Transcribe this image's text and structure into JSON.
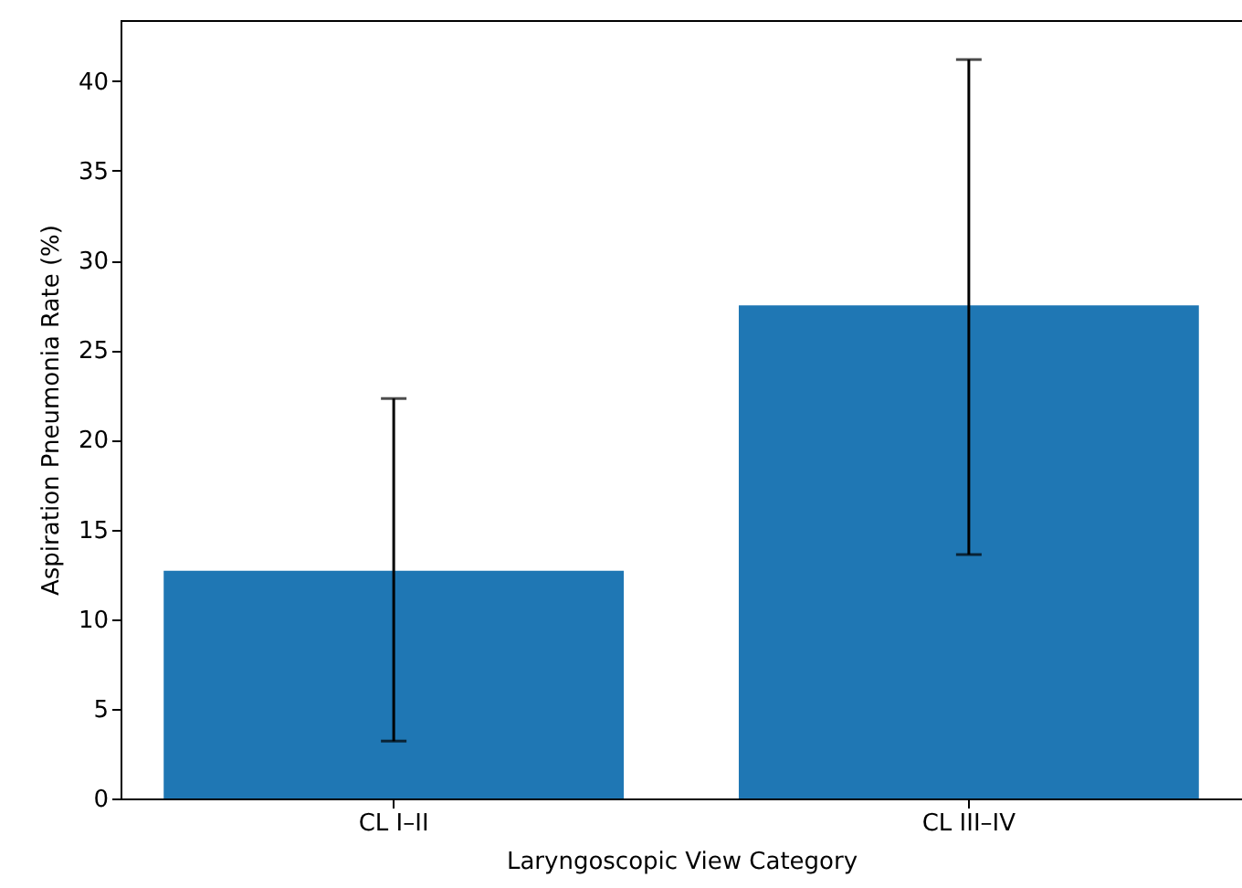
{
  "chart_data": {
    "type": "bar",
    "xlabel": "Laryngoscopic View Category",
    "ylabel": "Aspiration Pneumonia Rate (%)",
    "categories": [
      "CL I–II",
      "CL III–IV"
    ],
    "values": [
      12.7,
      27.5
    ],
    "color": "#1f77b4",
    "errors": [
      [
        3.2,
        22.3
      ],
      [
        13.6,
        41.2
      ]
    ],
    "ylim": [
      0,
      43.4
    ],
    "yticks": [
      0,
      5,
      10,
      15,
      20,
      25,
      30,
      35,
      40
    ],
    "grid": false
  }
}
